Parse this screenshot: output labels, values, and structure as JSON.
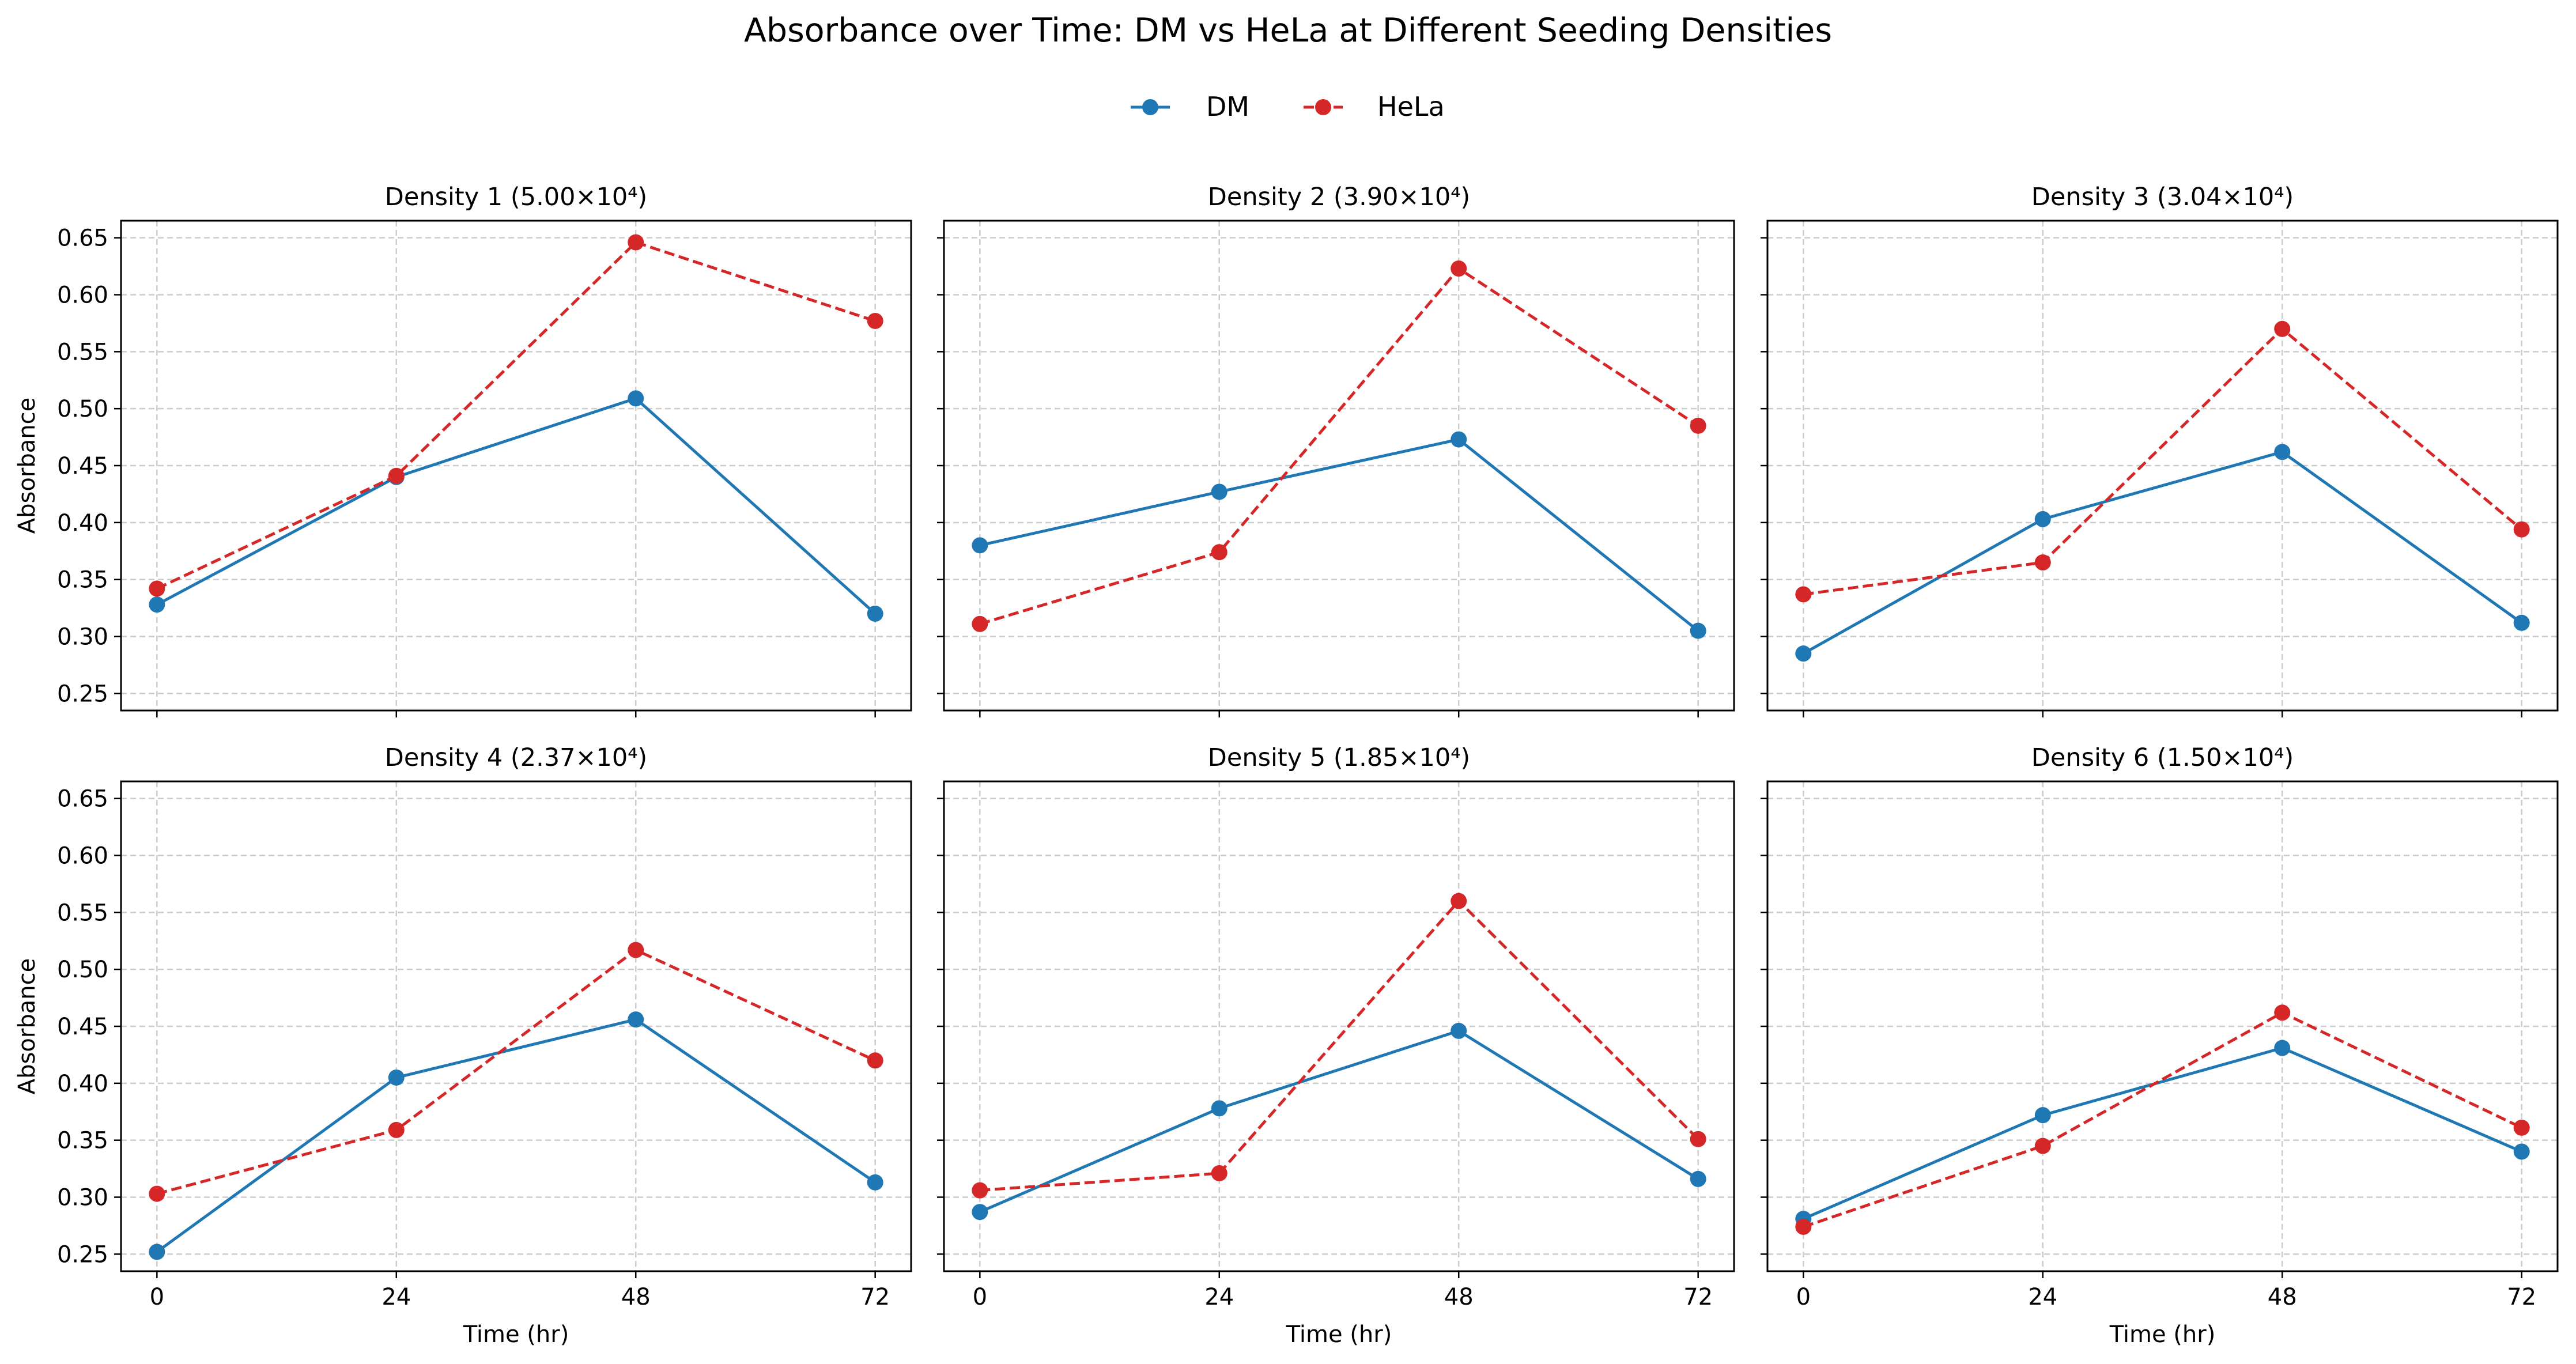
{
  "title": "Absorbance over Time: DM vs HeLa at Different Seeding Densities",
  "legend": {
    "placement": "top-center",
    "items": [
      "DM",
      "HeLa"
    ]
  },
  "colors": {
    "DM": "#1f77b4",
    "HeLa": "#d62728"
  },
  "chart_data": [
    {
      "type": "line",
      "title": "Density 1 (5.00×10⁴)",
      "x": [
        0,
        24,
        48,
        72
      ],
      "xlabel": "",
      "ylabel": "Absorbance",
      "series": [
        {
          "name": "DM",
          "values": [
            0.328,
            0.44,
            0.509,
            0.32
          ]
        },
        {
          "name": "HeLa",
          "values": [
            0.342,
            0.441,
            0.646,
            0.577
          ]
        }
      ]
    },
    {
      "type": "line",
      "title": "Density 2 (3.90×10⁴)",
      "x": [
        0,
        24,
        48,
        72
      ],
      "xlabel": "",
      "ylabel": "",
      "series": [
        {
          "name": "DM",
          "values": [
            0.38,
            0.427,
            0.473,
            0.305
          ]
        },
        {
          "name": "HeLa",
          "values": [
            0.311,
            0.374,
            0.623,
            0.485
          ]
        }
      ]
    },
    {
      "type": "line",
      "title": "Density 3 (3.04×10⁴)",
      "x": [
        0,
        24,
        48,
        72
      ],
      "xlabel": "",
      "ylabel": "",
      "series": [
        {
          "name": "DM",
          "values": [
            0.285,
            0.403,
            0.462,
            0.312
          ]
        },
        {
          "name": "HeLa",
          "values": [
            0.337,
            0.365,
            0.57,
            0.394
          ]
        }
      ]
    },
    {
      "type": "line",
      "title": "Density 4 (2.37×10⁴)",
      "x": [
        0,
        24,
        48,
        72
      ],
      "xlabel": "Time (hr)",
      "ylabel": "Absorbance",
      "series": [
        {
          "name": "DM",
          "values": [
            0.252,
            0.405,
            0.456,
            0.313
          ]
        },
        {
          "name": "HeLa",
          "values": [
            0.303,
            0.359,
            0.517,
            0.42
          ]
        }
      ]
    },
    {
      "type": "line",
      "title": "Density 5 (1.85×10⁴)",
      "x": [
        0,
        24,
        48,
        72
      ],
      "xlabel": "Time (hr)",
      "ylabel": "",
      "series": [
        {
          "name": "DM",
          "values": [
            0.287,
            0.378,
            0.446,
            0.316
          ]
        },
        {
          "name": "HeLa",
          "values": [
            0.306,
            0.321,
            0.56,
            0.351
          ]
        }
      ]
    },
    {
      "type": "line",
      "title": "Density 6 (1.50×10⁴)",
      "x": [
        0,
        24,
        48,
        72
      ],
      "xlabel": "Time (hr)",
      "ylabel": "",
      "series": [
        {
          "name": "DM",
          "values": [
            0.281,
            0.372,
            0.431,
            0.34
          ]
        },
        {
          "name": "HeLa",
          "values": [
            0.274,
            0.345,
            0.462,
            0.361
          ]
        }
      ]
    }
  ],
  "axes": {
    "x_ticks": [
      0,
      24,
      48,
      72
    ],
    "y_ticks": [
      0.25,
      0.3,
      0.35,
      0.4,
      0.45,
      0.5,
      0.55,
      0.6,
      0.65
    ],
    "y_tick_labels": [
      "0.25",
      "0.30",
      "0.35",
      "0.40",
      "0.45",
      "0.50",
      "0.55",
      "0.60",
      "0.65"
    ],
    "ylim": [
      0.235,
      0.665
    ],
    "xlim": [
      -3.6,
      75.6
    ],
    "grid": true,
    "sharex": true,
    "sharey": true
  }
}
